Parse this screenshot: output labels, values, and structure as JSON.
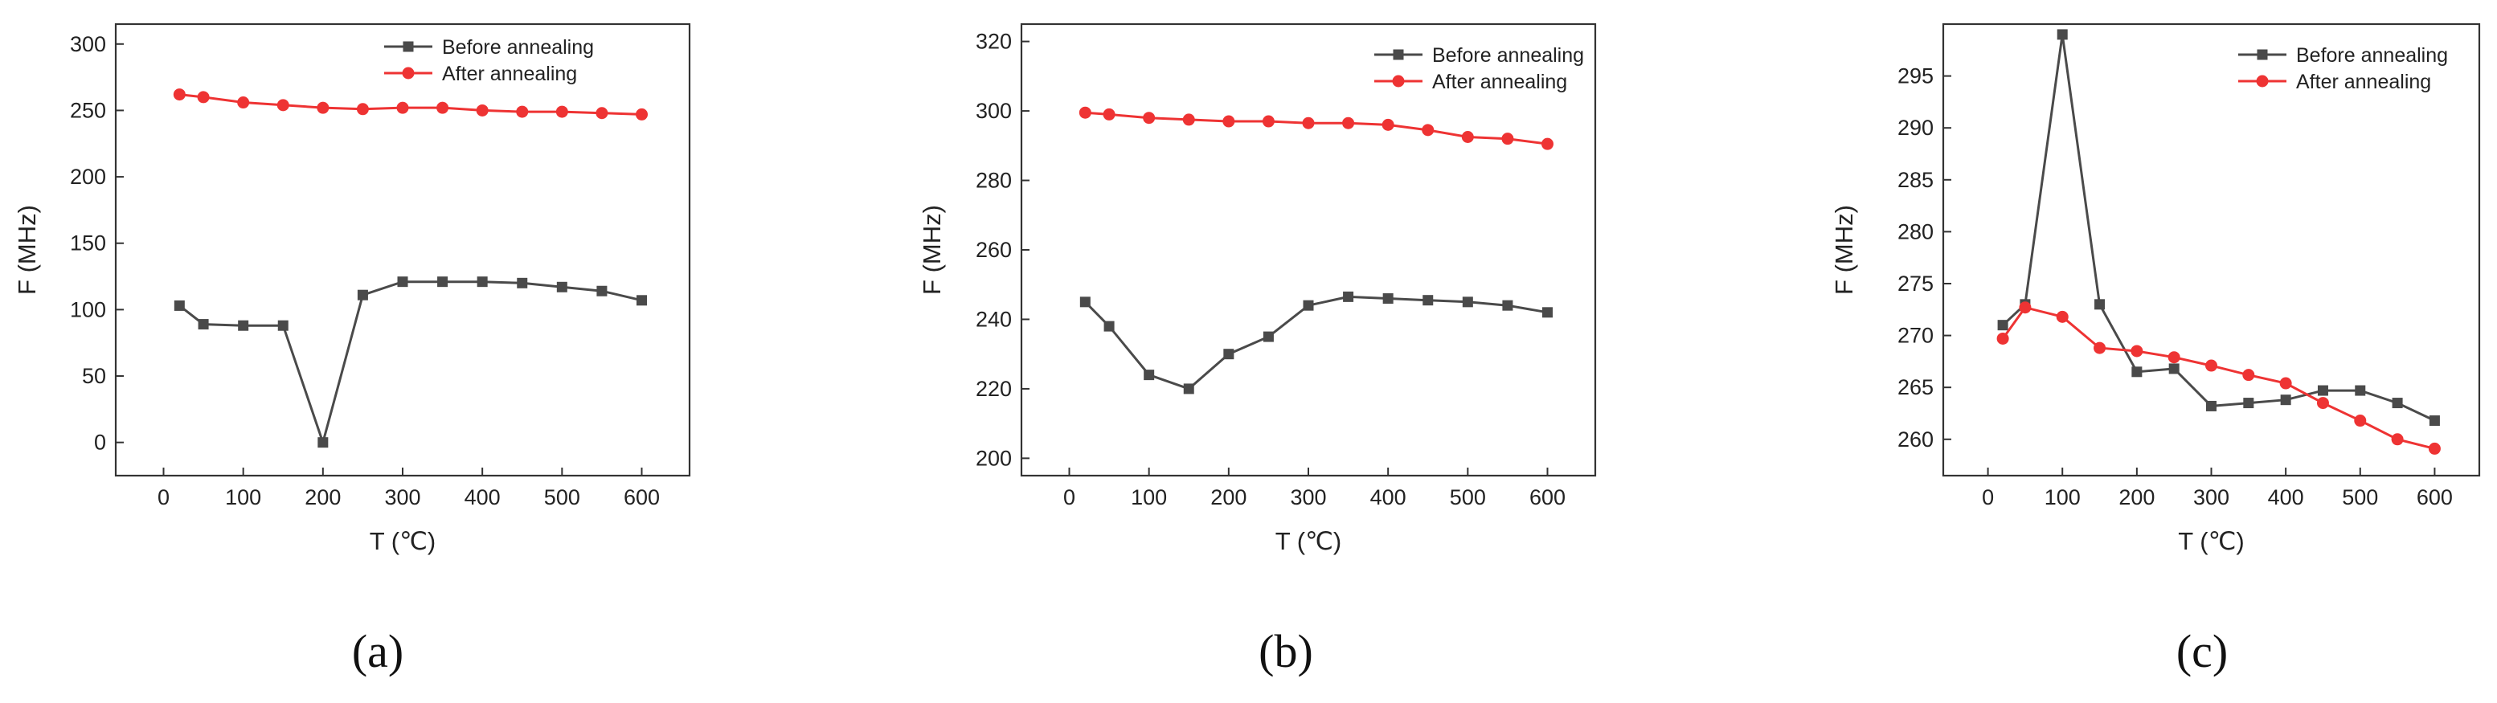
{
  "chart_data": [
    {
      "type": "line",
      "panel_label": "(a)",
      "xlabel": "T (℃)",
      "ylabel": "F (MHz)",
      "xlim": [
        -60,
        660
      ],
      "ylim": [
        -25,
        315
      ],
      "xticks": [
        0,
        100,
        200,
        300,
        400,
        500,
        600
      ],
      "yticks": [
        0,
        50,
        100,
        150,
        200,
        250,
        300
      ],
      "legend_position": "top-right",
      "x": [
        20,
        50,
        100,
        150,
        200,
        250,
        300,
        350,
        400,
        450,
        500,
        550,
        600
      ],
      "series": [
        {
          "name": "Before annealing",
          "color": "#4a4a4a",
          "marker": "square",
          "values": [
            103,
            89,
            88,
            88,
            0,
            111,
            121,
            121,
            121,
            120,
            117,
            114,
            107
          ]
        },
        {
          "name": "After annealing",
          "color": "#ee3333",
          "marker": "circle",
          "values": [
            262,
            260,
            256,
            254,
            252,
            251,
            252,
            252,
            250,
            249,
            249,
            248,
            247
          ]
        }
      ]
    },
    {
      "type": "line",
      "panel_label": "(b)",
      "xlabel": "T (℃)",
      "ylabel": "F (MHz)",
      "xlim": [
        -60,
        660
      ],
      "ylim": [
        195,
        325
      ],
      "xticks": [
        0,
        100,
        200,
        300,
        400,
        500,
        600
      ],
      "yticks": [
        200,
        220,
        240,
        260,
        280,
        300,
        320
      ],
      "legend_position": "top-right",
      "x": [
        20,
        50,
        100,
        150,
        200,
        250,
        300,
        350,
        400,
        450,
        500,
        550,
        600
      ],
      "series": [
        {
          "name": "Before annealing",
          "color": "#4a4a4a",
          "marker": "square",
          "values": [
            245,
            238,
            224,
            220,
            230,
            235,
            244,
            246.5,
            246,
            245.5,
            245,
            244,
            242
          ]
        },
        {
          "name": "After annealing",
          "color": "#ee3333",
          "marker": "circle",
          "values": [
            299.5,
            299,
            298,
            297.5,
            297,
            297,
            296.5,
            296.5,
            296,
            294.5,
            292.5,
            292,
            290.5
          ]
        }
      ]
    },
    {
      "type": "line",
      "panel_label": "(c)",
      "xlabel": "T (℃)",
      "ylabel": "F (MHz)",
      "xlim": [
        -60,
        660
      ],
      "ylim": [
        256.5,
        300
      ],
      "xticks": [
        0,
        100,
        200,
        300,
        400,
        500,
        600
      ],
      "yticks": [
        260,
        265,
        270,
        275,
        280,
        285,
        290,
        295
      ],
      "legend_position": "top-right",
      "x": [
        20,
        50,
        100,
        150,
        200,
        250,
        300,
        350,
        400,
        450,
        500,
        550,
        600
      ],
      "series": [
        {
          "name": "Before annealing",
          "color": "#4a4a4a",
          "marker": "square",
          "values": [
            271,
            273,
            299,
            273,
            266.5,
            266.8,
            263.2,
            263.5,
            263.8,
            264.7,
            264.7,
            263.5,
            261.8
          ]
        },
        {
          "name": "After annealing",
          "color": "#ee3333",
          "marker": "circle",
          "values": [
            269.7,
            272.7,
            271.8,
            268.8,
            268.5,
            267.9,
            267.1,
            266.2,
            265.4,
            263.5,
            261.8,
            260,
            259.1
          ]
        }
      ]
    }
  ]
}
